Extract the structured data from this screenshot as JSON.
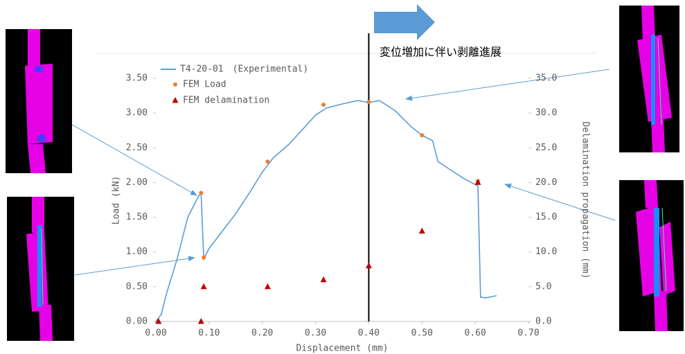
{
  "chart_data": {
    "type": "line",
    "xlabel": "Displacement (mm)",
    "ylabel": "Load (kN)",
    "y2label": "Delamination propagation (mm)",
    "annotation": "変位増加に伴い剥離進展",
    "xlim": [
      0,
      0.7
    ],
    "xticks": [
      {
        "value": 0,
        "label": "0.00"
      },
      {
        "value": 0.1,
        "label": "0.10"
      },
      {
        "value": 0.2,
        "label": "0.20"
      },
      {
        "value": 0.3,
        "label": "0.30"
      },
      {
        "value": 0.4,
        "label": "0.40"
      },
      {
        "value": 0.5,
        "label": "0.50"
      },
      {
        "value": 0.6,
        "label": "0.60"
      },
      {
        "value": 0.7,
        "label": "0.70"
      }
    ],
    "ylim": [
      0,
      3.5
    ],
    "yticks": [
      {
        "value": 0,
        "label": "0.00"
      },
      {
        "value": 0.5,
        "label": "0.50"
      },
      {
        "value": 1,
        "label": "1.00"
      },
      {
        "value": 1.5,
        "label": "1.50"
      },
      {
        "value": 2,
        "label": "2.00"
      },
      {
        "value": 2.5,
        "label": "2.50"
      },
      {
        "value": 3,
        "label": "3.00"
      },
      {
        "value": 3.5,
        "label": "3.50"
      }
    ],
    "y2lim": [
      0,
      35
    ],
    "y2ticks": [
      {
        "value": 0,
        "label": "0.0"
      },
      {
        "value": 5,
        "label": "5.0"
      },
      {
        "value": 10,
        "label": "10.0"
      },
      {
        "value": 15,
        "label": "15.0"
      },
      {
        "value": 20,
        "label": "20.0"
      },
      {
        "value": 25,
        "label": "25.0"
      },
      {
        "value": 30,
        "label": "30.0"
      },
      {
        "value": 35,
        "label": "35.0"
      }
    ],
    "marker_line_x": 0.4,
    "series": [
      {
        "name": "T4-20-01　(Experimental)",
        "type": "line",
        "color": "#5b9bd5",
        "x": [
          0,
          0.01,
          0.02,
          0.03,
          0.04,
          0.05,
          0.06,
          0.07,
          0.08,
          0.085,
          0.09,
          0.1,
          0.12,
          0.15,
          0.18,
          0.2,
          0.22,
          0.25,
          0.28,
          0.3,
          0.32,
          0.35,
          0.38,
          0.4,
          0.42,
          0.45,
          0.48,
          0.5,
          0.52,
          0.53,
          0.55,
          0.58,
          0.6,
          0.605,
          0.61,
          0.62,
          0.64
        ],
        "values": [
          0,
          0.1,
          0.4,
          0.65,
          0.9,
          1.2,
          1.5,
          1.65,
          1.8,
          1.85,
          0.9,
          1.05,
          1.25,
          1.55,
          1.9,
          2.15,
          2.35,
          2.55,
          2.8,
          2.97,
          3.07,
          3.13,
          3.18,
          3.15,
          3.18,
          3.03,
          2.8,
          2.68,
          2.6,
          2.3,
          2.2,
          2.05,
          1.97,
          1.95,
          0.35,
          0.34,
          0.37
        ]
      },
      {
        "name": "FEM Load",
        "type": "scatter",
        "marker": "circle",
        "color": "#ed7d31",
        "x": [
          0.085,
          0.09,
          0.21,
          0.315,
          0.4,
          0.5,
          0.605
        ],
        "values": [
          1.85,
          0.92,
          2.3,
          3.12,
          3.16,
          2.68,
          2.02
        ]
      },
      {
        "name": "FEM delamination",
        "type": "scatter",
        "marker": "triangle",
        "color": "#c00000",
        "axis": "y2",
        "x": [
          0.005,
          0.085,
          0.09,
          0.21,
          0.315,
          0.4,
          0.5,
          0.605
        ],
        "values": [
          0,
          0,
          5,
          5,
          6,
          8,
          13,
          20
        ]
      }
    ]
  }
}
